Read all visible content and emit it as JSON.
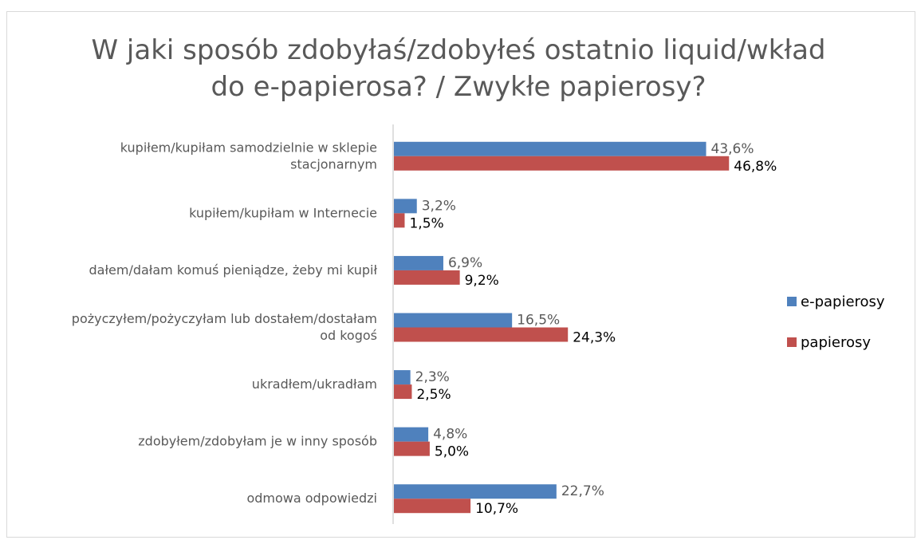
{
  "chart_data": {
    "type": "bar",
    "orientation": "horizontal",
    "title": "W jaki sposób zdobyłaś/zdobyłeś ostatnio liquid/wkład\ndo e-papierosa? / Zwykłe papierosy?",
    "categories": [
      [
        "kupiłem/kupiłam samodzielnie w sklepie",
        "stacjonarnym"
      ],
      [
        "kupiłem/kupiłam w Internecie"
      ],
      [
        "dałem/dałam komuś pieniądze, żeby mi kupił"
      ],
      [
        "pożyczyłem/pożyczyłam lub dostałem/dostałam",
        "od kogoś"
      ],
      [
        "ukradłem/ukradłam"
      ],
      [
        "zdobyłem/zdobyłam je w inny sposób"
      ],
      [
        "odmowa odpowiedzi"
      ]
    ],
    "series": [
      {
        "name": "e-papierosy",
        "color": "#4f81bd",
        "values": [
          43.6,
          3.2,
          6.9,
          16.5,
          2.3,
          4.8,
          22.7
        ],
        "labels": [
          "43,6%",
          "3,2%",
          "6,9%",
          "16,5%",
          "2,3%",
          "4,8%",
          "22,7%"
        ]
      },
      {
        "name": "papierosy",
        "color": "#c0504d",
        "values": [
          46.8,
          1.5,
          9.2,
          24.3,
          2.5,
          5.0,
          10.7
        ],
        "labels": [
          "46,8%",
          "1,5%",
          "9,2%",
          "24,3%",
          "2,5%",
          "5,0%",
          "10,7%"
        ]
      }
    ],
    "xlabel": "",
    "ylabel": "",
    "xlim": [
      0,
      50
    ],
    "grid": false,
    "legend_position": "right",
    "axis_color": "#bfbfbf"
  }
}
